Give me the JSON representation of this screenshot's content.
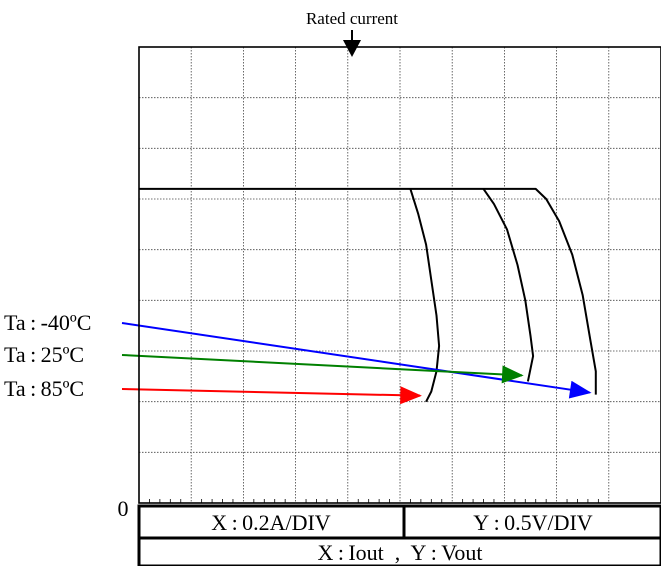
{
  "chart_data": {
    "type": "line",
    "annotation_top": "Rated current",
    "origin_label": "0",
    "x_scale_label": "X : 0.2A/DIV",
    "y_scale_label": "Y : 0.5V/DIV",
    "axes_label": "X : Iout  ,  Y : Vout",
    "grid": true,
    "x_divisions": 10,
    "y_divisions": 9,
    "x_unit_per_div": 0.2,
    "y_unit_per_div": 0.5,
    "xlim": [
      0,
      2.0
    ],
    "ylim": [
      0,
      4.5
    ],
    "rated_current": 0.8,
    "series": [
      {
        "name": "Ta : -40ºC",
        "color": "#0000ff",
        "points": [
          [
            0,
            3.1
          ],
          [
            0.58,
            3.1
          ],
          [
            1.52,
            3.1
          ],
          [
            1.56,
            3.0
          ],
          [
            1.61,
            2.78
          ],
          [
            1.66,
            2.45
          ],
          [
            1.7,
            2.05
          ],
          [
            1.73,
            1.6
          ],
          [
            1.75,
            1.3
          ],
          [
            1.75,
            1.07
          ]
        ]
      },
      {
        "name": "Ta : 25ºC",
        "color": "#008000",
        "points": [
          [
            1.32,
            3.1
          ],
          [
            1.36,
            2.95
          ],
          [
            1.41,
            2.7
          ],
          [
            1.45,
            2.35
          ],
          [
            1.48,
            2.0
          ],
          [
            1.5,
            1.65
          ],
          [
            1.51,
            1.45
          ],
          [
            1.49,
            1.2
          ]
        ]
      },
      {
        "name": "Ta : 85ºC",
        "color": "#ff0000",
        "points": [
          [
            1.04,
            3.1
          ],
          [
            1.07,
            2.85
          ],
          [
            1.1,
            2.55
          ],
          [
            1.12,
            2.2
          ],
          [
            1.14,
            1.85
          ],
          [
            1.15,
            1.55
          ],
          [
            1.14,
            1.3
          ],
          [
            1.12,
            1.1
          ],
          [
            1.1,
            1.0
          ]
        ]
      }
    ]
  }
}
